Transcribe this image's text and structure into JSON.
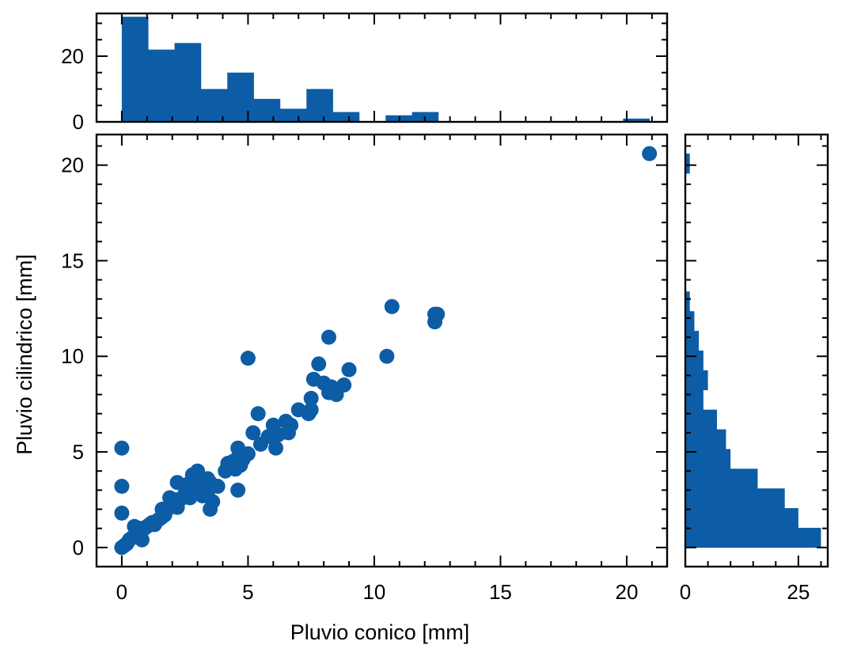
{
  "colors": {
    "primary": "#0c5da5",
    "axis": "#000000",
    "background": "#ffffff"
  },
  "chart_data": [
    {
      "type": "scatter",
      "panel": "main",
      "xlabel": "Pluvio conico [mm]",
      "ylabel": "Pluvio cilindrico [mm]",
      "xlim": [
        -1,
        21.6
      ],
      "ylim": [
        -1,
        21.6
      ],
      "xticks": [
        0,
        5,
        10,
        15,
        20
      ],
      "yticks": [
        0,
        5,
        10,
        15,
        20
      ],
      "xtick_labels": [
        "0",
        "5",
        "10",
        "15",
        "20"
      ],
      "ytick_labels": [
        "0",
        "5",
        "10",
        "15",
        "20"
      ],
      "grid": false,
      "series": [
        {
          "color": "#0c5da5",
          "points": [
            [
              0,
              0
            ],
            [
              0.1,
              0.1
            ],
            [
              0.2,
              0.2
            ],
            [
              0.3,
              0.4
            ],
            [
              0.4,
              0.5
            ],
            [
              0.5,
              0.6
            ],
            [
              0.6,
              0.7
            ],
            [
              0.5,
              1.1
            ],
            [
              0.7,
              1.0
            ],
            [
              0.8,
              0.4
            ],
            [
              0.9,
              1.0
            ],
            [
              1.0,
              1.1
            ],
            [
              1.1,
              1.2
            ],
            [
              1.2,
              1.3
            ],
            [
              1.3,
              1.2
            ],
            [
              1.4,
              1.4
            ],
            [
              1.5,
              1.5
            ],
            [
              1.6,
              1.6
            ],
            [
              1.6,
              2.0
            ],
            [
              1.7,
              1.7
            ],
            [
              1.8,
              2.0
            ],
            [
              1.9,
              2.1
            ],
            [
              1.9,
              2.6
            ],
            [
              2.0,
              2.3
            ],
            [
              2.1,
              2.5
            ],
            [
              2.2,
              2.1
            ],
            [
              2.2,
              3.4
            ],
            [
              2.3,
              2.5
            ],
            [
              2.4,
              2.6
            ],
            [
              2.5,
              2.8
            ],
            [
              2.6,
              2.9
            ],
            [
              2.6,
              3.3
            ],
            [
              2.7,
              2.6
            ],
            [
              2.8,
              3.8
            ],
            [
              2.9,
              2.9
            ],
            [
              3.0,
              3.0
            ],
            [
              3.0,
              4.0
            ],
            [
              3.1,
              3.3
            ],
            [
              3.2,
              2.7
            ],
            [
              3.3,
              3.1
            ],
            [
              3.4,
              2.9
            ],
            [
              3.4,
              3.6
            ],
            [
              3.5,
              3.4
            ],
            [
              3.5,
              2.0
            ],
            [
              3.6,
              2.4
            ],
            [
              3.8,
              3.2
            ],
            [
              4.1,
              4.0
            ],
            [
              4.2,
              4.4
            ],
            [
              4.4,
              4.5
            ],
            [
              4.5,
              4.1
            ],
            [
              4.6,
              3.0
            ],
            [
              4.6,
              4.7
            ],
            [
              4.7,
              4.3
            ],
            [
              4.8,
              4.6
            ],
            [
              4.6,
              5.2
            ],
            [
              5.0,
              4.9
            ],
            [
              5.0,
              9.9
            ],
            [
              5.2,
              6.0
            ],
            [
              5.4,
              7.0
            ],
            [
              5.5,
              5.4
            ],
            [
              5.8,
              5.8
            ],
            [
              6.0,
              6.4
            ],
            [
              6.1,
              5.2
            ],
            [
              6.2,
              5.9
            ],
            [
              6.5,
              6.6
            ],
            [
              6.6,
              6.0
            ],
            [
              6.7,
              6.4
            ],
            [
              7.0,
              7.2
            ],
            [
              7.4,
              7.0
            ],
            [
              7.5,
              7.2
            ],
            [
              7.5,
              7.8
            ],
            [
              7.6,
              8.8
            ],
            [
              7.8,
              9.6
            ],
            [
              8.0,
              8.6
            ],
            [
              8.2,
              8.1
            ],
            [
              8.2,
              11.0
            ],
            [
              8.3,
              8.4
            ],
            [
              8.5,
              8.0
            ],
            [
              8.8,
              8.5
            ],
            [
              9.0,
              9.3
            ],
            [
              0,
              5.2
            ],
            [
              0,
              3.2
            ],
            [
              0,
              1.8
            ],
            [
              10.5,
              10.0
            ],
            [
              10.7,
              12.6
            ],
            [
              12.4,
              12.2
            ],
            [
              12.4,
              11.8
            ],
            [
              12.5,
              12.2
            ],
            [
              20.9,
              20.6
            ]
          ]
        }
      ]
    },
    {
      "type": "bar",
      "panel": "top-histogram",
      "orientation": "vertical",
      "xlim": [
        -1,
        21.6
      ],
      "ylim": [
        0,
        33
      ],
      "yticks": [
        0,
        20
      ],
      "ytick_labels": [
        "0",
        "20"
      ],
      "grid": false,
      "bin_edges": [
        0,
        1.045,
        2.09,
        3.135,
        4.18,
        5.225,
        6.27,
        7.315,
        8.36,
        9.405,
        10.45,
        11.495,
        12.54,
        13.585,
        14.63,
        15.675,
        16.72,
        17.765,
        18.81,
        19.855,
        20.9
      ],
      "values": [
        32,
        22,
        24,
        10,
        15,
        7,
        4,
        10,
        3,
        0,
        2,
        3,
        0,
        0,
        0,
        0,
        0,
        0,
        0,
        1
      ]
    },
    {
      "type": "bar",
      "panel": "right-histogram",
      "orientation": "horizontal",
      "xlim": [
        0,
        31.5
      ],
      "ylim": [
        -1,
        21.6
      ],
      "xticks": [
        0,
        25
      ],
      "xtick_labels": [
        "0",
        "25"
      ],
      "grid": false,
      "bin_edges": [
        0,
        1.03,
        2.06,
        3.09,
        4.12,
        5.15,
        6.18,
        7.21,
        8.24,
        9.27,
        10.3,
        11.33,
        12.36,
        13.39,
        14.42,
        15.45,
        16.48,
        17.51,
        18.54,
        19.57,
        20.6
      ],
      "values": [
        30,
        25,
        22,
        16,
        10,
        9,
        7,
        4,
        5,
        4,
        3,
        2,
        1,
        0,
        0,
        0,
        0,
        0,
        0,
        1
      ]
    }
  ]
}
